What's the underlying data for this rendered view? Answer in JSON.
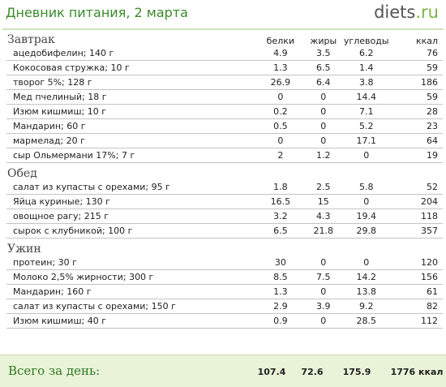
{
  "header": {
    "title": "Дневник питания, 2 марта",
    "logo_main": "diets",
    "logo_dot": ".",
    "logo_tld": "ru"
  },
  "columns": {
    "protein": "белки",
    "fat": "жиры",
    "carbs": "углеводы",
    "kcal": "ккал"
  },
  "meals": [
    {
      "title": "Завтрак",
      "items": [
        {
          "name": "ацедобифелин; 140 г",
          "protein": "4.9",
          "fat": "3.5",
          "carbs": "6.2",
          "kcal": "76"
        },
        {
          "name": "Кокосовая стружка; 10 г",
          "protein": "1.3",
          "fat": "6.5",
          "carbs": "1.4",
          "kcal": "59"
        },
        {
          "name": "творог 5%; 128 г",
          "protein": "26.9",
          "fat": "6.4",
          "carbs": "3.8",
          "kcal": "186"
        },
        {
          "name": "Мед пчелиный; 18 г",
          "protein": "0",
          "fat": "0",
          "carbs": "14.4",
          "kcal": "59"
        },
        {
          "name": "Изюм кишмиш; 10 г",
          "protein": "0.2",
          "fat": "0",
          "carbs": "7.1",
          "kcal": "28"
        },
        {
          "name": "Мандарин; 60 г",
          "protein": "0.5",
          "fat": "0",
          "carbs": "5.2",
          "kcal": "23"
        },
        {
          "name": "мармелад; 20 г",
          "protein": "0",
          "fat": "0",
          "carbs": "17.1",
          "kcal": "64"
        },
        {
          "name": "сыр Ольмермани 17%; 7 г",
          "protein": "2",
          "fat": "1.2",
          "carbs": "0",
          "kcal": "19"
        }
      ]
    },
    {
      "title": "Обед",
      "items": [
        {
          "name": "салат из купасты с орехами; 95 г",
          "protein": "1.8",
          "fat": "2.5",
          "carbs": "5.8",
          "kcal": "52"
        },
        {
          "name": "Яйца куриные; 130 г",
          "protein": "16.5",
          "fat": "15",
          "carbs": "0",
          "kcal": "204"
        },
        {
          "name": "овощное рагу; 215 г",
          "protein": "3.2",
          "fat": "4.3",
          "carbs": "19.4",
          "kcal": "118"
        },
        {
          "name": "сырок с клубникой; 100 г",
          "protein": "6.5",
          "fat": "21.8",
          "carbs": "29.8",
          "kcal": "357"
        }
      ]
    },
    {
      "title": "Ужин",
      "items": [
        {
          "name": "протеин; 30 г",
          "protein": "30",
          "fat": "0",
          "carbs": "0",
          "kcal": "120"
        },
        {
          "name": "Молоко 2,5% жирности; 300 г",
          "protein": "8.5",
          "fat": "7.5",
          "carbs": "14.2",
          "kcal": "156"
        },
        {
          "name": "Мандарин; 160 г",
          "protein": "1.3",
          "fat": "0",
          "carbs": "13.8",
          "kcal": "61"
        },
        {
          "name": "салат из купасты с орехами; 150 г",
          "protein": "2.9",
          "fat": "3.9",
          "carbs": "9.2",
          "kcal": "82"
        },
        {
          "name": "Изюм кишмиш; 40 г",
          "protein": "0.9",
          "fat": "0",
          "carbs": "28.5",
          "kcal": "112"
        }
      ]
    }
  ],
  "total": {
    "label": "Всего за день:",
    "protein": "107.4",
    "fat": "72.6",
    "carbs": "175.9",
    "kcal": "1776 ккал"
  },
  "colors": {
    "title": "#3a8a2a",
    "total_bg": "#e8f3d8",
    "total_label": "#2e7a22"
  }
}
